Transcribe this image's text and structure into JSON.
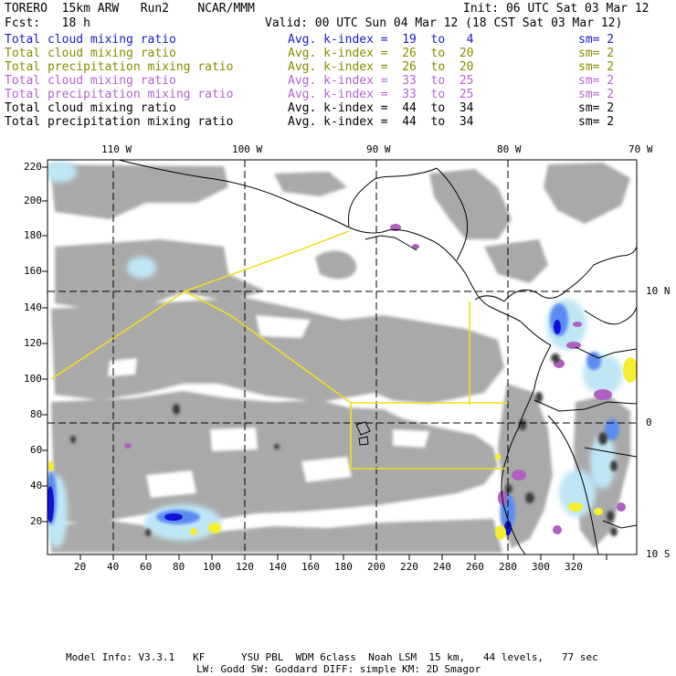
{
  "header": {
    "model": "TORERO  15km ARW   Run2    NCAR/MMM",
    "init": "Init: 06 UTC Sat 03 Mar 12",
    "fcst": "Fcst:   18 h",
    "valid": "Valid: 00 UTC Sun 04 Mar 12 (18 CST Sat 03 Mar 12)"
  },
  "legend": [
    {
      "field": "Total cloud mixing ratio",
      "index": "Avg. k-index =  19  to   4",
      "sm": "sm= 2",
      "color": "#1a1acc"
    },
    {
      "field": "Total cloud mixing ratio",
      "index": "Avg. k-index =  26  to  20",
      "sm": "sm= 2",
      "color": "#8a8a00"
    },
    {
      "field": "Total precipitation mixing ratio",
      "index": "Avg. k-index =  26  to  20",
      "sm": "sm= 2",
      "color": "#8a8a00"
    },
    {
      "field": "Total cloud mixing ratio",
      "index": "Avg. k-index =  33  to  25",
      "sm": "sm= 2",
      "color": "#b366cc"
    },
    {
      "field": "Total precipitation mixing ratio",
      "index": "Avg. k-index =  33  to  25",
      "sm": "sm= 2",
      "color": "#b366cc"
    },
    {
      "field": "Total cloud mixing ratio",
      "index": "Avg. k-index =  44  to  34",
      "sm": "sm= 2",
      "color": "#000000"
    },
    {
      "field": "Total precipitation mixing ratio",
      "index": "Avg. k-index =  44  to  34",
      "sm": "sm= 2",
      "color": "#000000"
    }
  ],
  "map": {
    "lon_labels": [
      "110 W",
      "100 W",
      "90 W",
      "80 W",
      "70 W"
    ],
    "lat_labels": [
      "10 N",
      "0",
      "10 S"
    ],
    "y_ticks": [
      "220",
      "200",
      "180",
      "160",
      "140",
      "120",
      "100",
      "80",
      "60",
      "40",
      "20"
    ],
    "x_ticks": [
      "20",
      "40",
      "60",
      "80",
      "100",
      "120",
      "140",
      "160",
      "180",
      "200",
      "220",
      "240",
      "260",
      "280",
      "300",
      "320"
    ],
    "colors": {
      "cloud_gray": "#a9a9a9",
      "dark_core": "#3a3a3a",
      "light_blue": "#bfe6f5",
      "mid_blue": "#5a8cf0",
      "deep_blue": "#1010d8",
      "purple": "#b060c0",
      "yellow": "#f5ef30",
      "track": "#f0e020"
    }
  },
  "footer": {
    "line1": "Model Info: V3.3.1   KF      YSU PBL  WDM 6class  Noah LSM  15 km,   44 levels,   77 sec",
    "line2": "LW: Godd SW: Goddard DIFF: simple KM: 2D Smagor"
  }
}
